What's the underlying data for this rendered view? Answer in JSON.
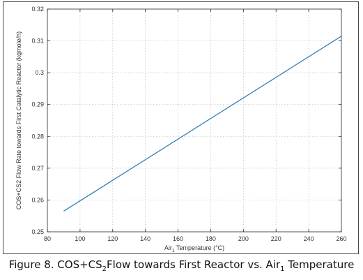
{
  "chart_data": {
    "type": "line",
    "title": "",
    "xlabel_main": "Air",
    "xlabel_sub": "1",
    "xlabel_rest": " Temperature (°C)",
    "ylabel": "COS+CS2 Flow Rate towards First Catalytic Reactor (kgmole/h)",
    "xlim": [
      80,
      260
    ],
    "ylim": [
      0.25,
      0.32
    ],
    "xticks": [
      80,
      100,
      120,
      140,
      160,
      180,
      200,
      220,
      240,
      260
    ],
    "yticks": [
      0.25,
      0.26,
      0.27,
      0.28,
      0.29,
      0.3,
      0.31,
      0.32
    ],
    "grid": true,
    "series": [
      {
        "color": "#1f77b4",
        "x": [
          90,
          260
        ],
        "y": [
          0.2565,
          0.3115
        ]
      }
    ]
  },
  "caption": {
    "part1": "Figure 8. COS+CS",
    "sub1": "2",
    "part2": "Flow towards First Reactor vs. Air",
    "sub2": "1",
    "part3": " Temperature"
  }
}
